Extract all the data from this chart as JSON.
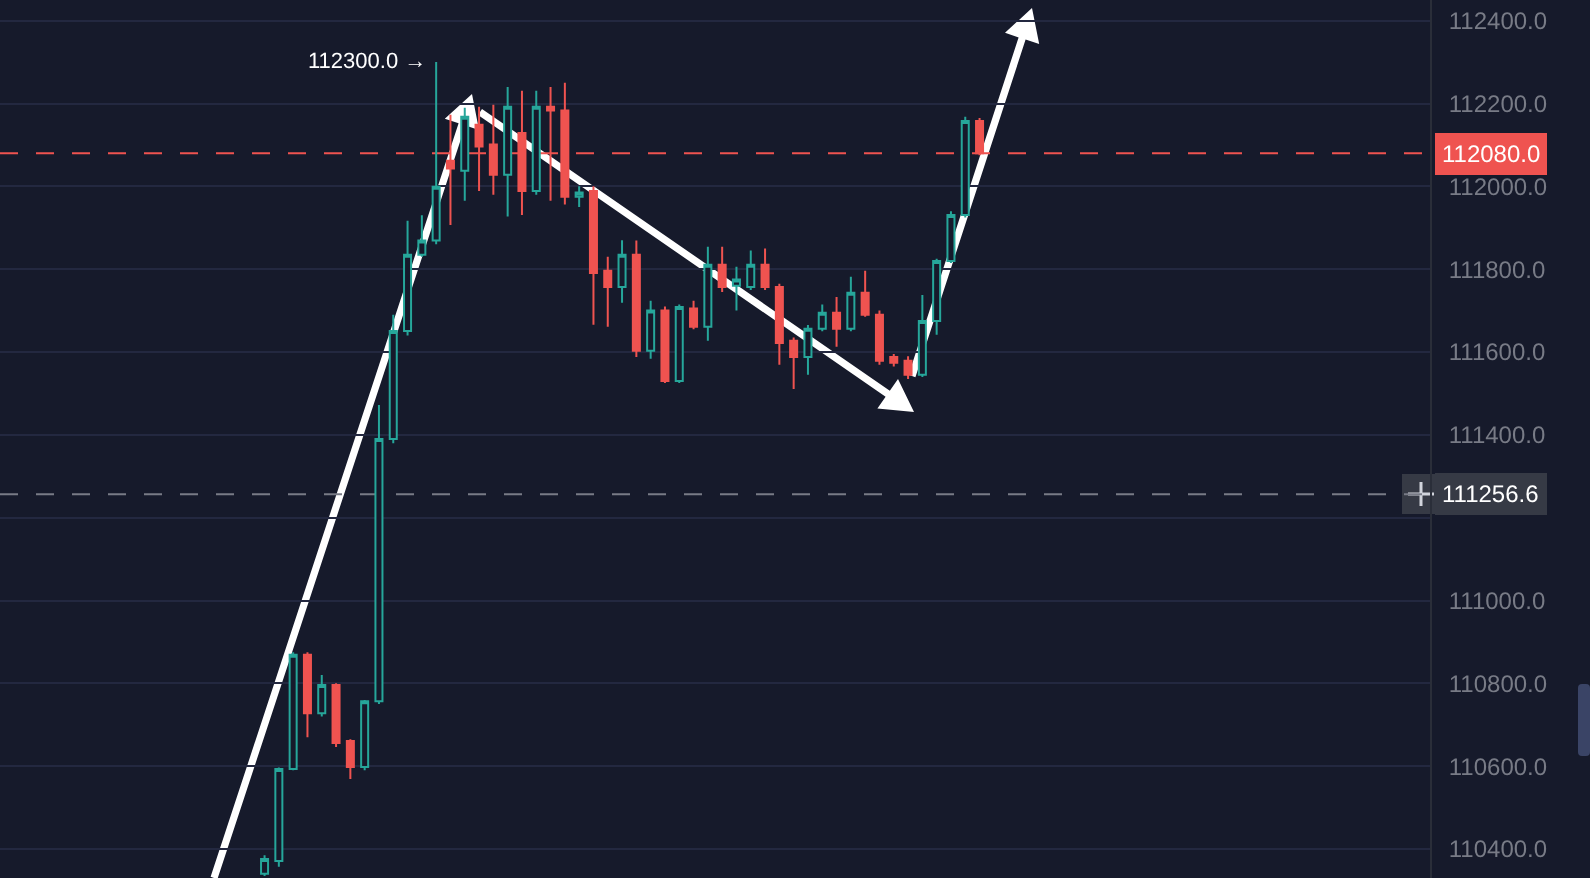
{
  "chart_data": {
    "type": "candlestick",
    "categories": [
      null,
      null,
      null,
      null,
      null,
      null,
      null,
      null,
      null,
      null,
      null,
      null,
      null,
      null,
      null,
      null,
      null,
      null,
      null,
      null,
      null,
      null,
      null,
      null,
      null,
      null,
      null,
      null,
      null,
      null,
      null,
      null,
      null,
      null,
      null,
      null,
      null,
      null,
      null,
      null,
      null,
      null,
      null,
      null,
      null,
      null,
      null,
      null,
      null,
      null,
      null,
      null,
      null,
      null,
      null,
      null,
      null,
      null,
      null,
      null,
      null,
      null,
      null,
      null,
      null,
      null,
      null,
      null,
      null,
      null,
      null,
      null,
      null,
      null,
      null,
      null,
      null,
      null,
      null,
      null,
      null,
      null,
      null,
      null,
      null,
      null,
      null,
      null,
      null,
      null,
      null,
      null,
      null,
      null,
      null,
      null,
      null,
      null,
      null,
      null
    ],
    "ohlc": [
      null,
      null,
      null,
      null,
      null,
      null,
      null,
      null,
      null,
      null,
      null,
      null,
      null,
      null,
      null,
      null,
      null,
      null,
      [
        110340,
        110385,
        110335,
        110376
      ],
      [
        110371,
        110597,
        110357,
        110593
      ],
      [
        110593,
        110875,
        110590,
        110869
      ],
      [
        110869,
        110875,
        110670,
        110728
      ],
      [
        110728,
        110820,
        110720,
        110796
      ],
      [
        110796,
        110800,
        110646,
        110656
      ],
      [
        110661,
        110665,
        110569,
        110598
      ],
      [
        110598,
        110760,
        110590,
        110757
      ],
      [
        110757,
        111472,
        110750,
        111390
      ],
      [
        111390,
        111690,
        111380,
        111651
      ],
      [
        111651,
        111917,
        111640,
        111835
      ],
      [
        111835,
        111930,
        111830,
        111869
      ],
      [
        111869,
        112300,
        111860,
        111999
      ],
      [
        112062,
        112173,
        111907,
        112043
      ],
      [
        112038,
        112190,
        111965,
        112168
      ],
      [
        112149,
        112192,
        111989,
        112096
      ],
      [
        112101,
        112197,
        111980,
        112028
      ],
      [
        112028,
        112240,
        111927,
        112192
      ],
      [
        112129,
        112231,
        111931,
        111989
      ],
      [
        111989,
        112231,
        111980,
        112192
      ],
      [
        112192,
        112240,
        111965,
        112183
      ],
      [
        112183,
        112250,
        111956,
        111975
      ],
      [
        111975,
        112000,
        111950,
        111985
      ],
      [
        111989,
        112000,
        111666,
        111791
      ],
      [
        111796,
        111830,
        111661,
        111757
      ],
      [
        111757,
        111870,
        111719,
        111835
      ],
      [
        111835,
        111869,
        111588,
        111603
      ],
      [
        111603,
        111724,
        111584,
        111700
      ],
      [
        111700,
        111710,
        111525,
        111530
      ],
      [
        111530,
        111715,
        111525,
        111709
      ],
      [
        111705,
        111724,
        111655,
        111661
      ],
      [
        111661,
        111854,
        111627,
        111811
      ],
      [
        111811,
        111854,
        111745,
        111757
      ],
      [
        111760,
        111806,
        111700,
        111775
      ],
      [
        111757,
        111845,
        111750,
        111811
      ],
      [
        111811,
        111850,
        111750,
        111757
      ],
      [
        111757,
        111765,
        111569,
        111622
      ],
      [
        111627,
        111635,
        111511,
        111588
      ],
      [
        111588,
        111665,
        111545,
        111656
      ],
      [
        111656,
        111715,
        111650,
        111695
      ],
      [
        111695,
        111733,
        111613,
        111656
      ],
      [
        111656,
        111782,
        111650,
        111743
      ],
      [
        111743,
        111796,
        111685,
        111690
      ],
      [
        111690,
        111700,
        111569,
        111579
      ],
      [
        111588,
        111595,
        111565,
        111574
      ],
      [
        111579,
        111590,
        111535,
        111545
      ],
      [
        111545,
        111738,
        111540,
        111675
      ],
      [
        111675,
        111825,
        111642,
        111820
      ],
      [
        111820,
        111940,
        111815,
        111931
      ],
      [
        111931,
        112168,
        111925,
        112158
      ],
      [
        112158,
        112165,
        112075,
        112080
      ],
      null,
      null,
      null,
      null,
      null,
      null,
      null,
      null,
      null,
      null,
      null,
      null,
      null,
      null,
      null,
      null,
      null,
      null,
      null,
      null,
      null,
      null,
      null,
      null,
      null,
      null,
      null,
      null,
      null,
      null,
      null
    ],
    "colors": [
      null,
      null,
      null,
      null,
      null,
      null,
      null,
      null,
      null,
      null,
      null,
      null,
      null,
      null,
      null,
      null,
      null,
      null,
      "#26a69a",
      "#26a69a",
      "#26a69a",
      "#ef5350",
      "#26a69a",
      "#ef5350",
      "#ef5350",
      "#26a69a",
      "#26a69a",
      "#26a69a",
      "#26a69a",
      "#26a69a",
      "#26a69a",
      "#ef5350",
      "#26a69a",
      "#ef5350",
      "#ef5350",
      "#26a69a",
      "#ef5350",
      "#26a69a",
      "#ef5350",
      "#ef5350",
      "#26a69a",
      "#ef5350",
      "#ef5350",
      "#26a69a",
      "#ef5350",
      "#26a69a",
      "#ef5350",
      "#26a69a",
      "#ef5350",
      "#26a69a",
      "#ef5350",
      "#26a69a",
      "#26a69a",
      "#ef5350",
      "#ef5350",
      "#ef5350",
      "#26a69a",
      "#26a69a",
      "#ef5350",
      "#26a69a",
      "#ef5350",
      "#ef5350",
      "#ef5350",
      "#ef5350",
      "#26a69a",
      "#26a69a",
      "#26a69a",
      "#26a69a",
      "#ef5350",
      null,
      null,
      null,
      null,
      null,
      null,
      null,
      null,
      null,
      null,
      null,
      null,
      null,
      null,
      null,
      null,
      null,
      null,
      null,
      null,
      null,
      null,
      null,
      null,
      null,
      null,
      null,
      null,
      null,
      null,
      null
    ],
    "ylim": [
      110330,
      112450
    ],
    "yticks": [
      {
        "value": 110400,
        "label": "110400.0"
      },
      {
        "value": 110600,
        "label": "110600.0"
      },
      {
        "value": 110800,
        "label": "110800.0"
      },
      {
        "value": 111000,
        "label": "111000.0"
      },
      {
        "value": 111200,
        "label": null
      },
      {
        "value": 111400,
        "label": "111400.0"
      },
      {
        "value": 111600,
        "label": "111600.0"
      },
      {
        "value": 111800,
        "label": "111800.0"
      },
      {
        "value": 112000,
        "label": "112000.0"
      },
      {
        "value": 112200,
        "label": "112200.0"
      },
      {
        "value": 112400,
        "label": "112400.0"
      }
    ],
    "tick_labels": "y",
    "grid": "y",
    "ref_lines": [
      {
        "axis": "y",
        "value": 112080,
        "label": "112080.0",
        "color": "#ef5350",
        "line_style": "dashed"
      },
      {
        "axis": "y",
        "value": 111256.6,
        "label": "111256.6",
        "color": "#787b86",
        "line_style": "dashed"
      }
    ],
    "annotations": [
      "112300.0 →"
    ]
  }
}
